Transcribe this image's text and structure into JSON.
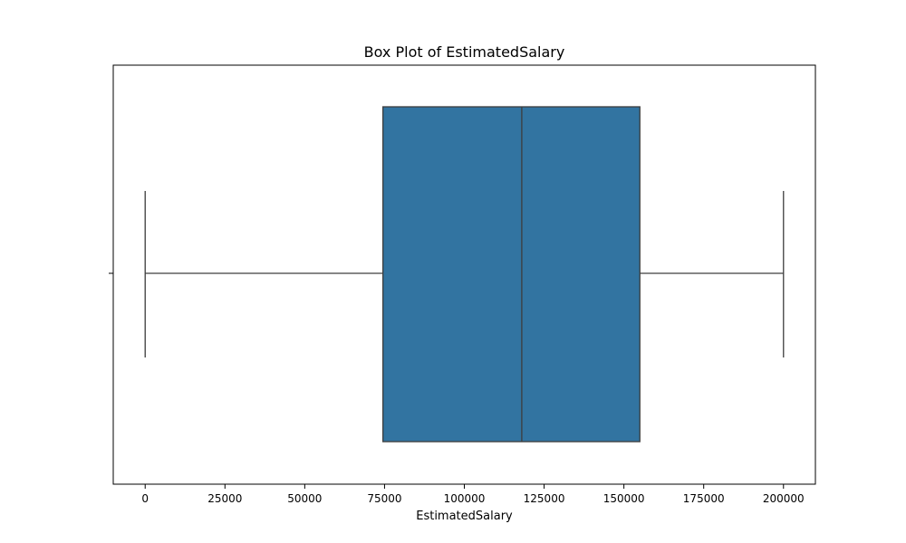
{
  "chart_data": {
    "type": "box",
    "title": "Box Plot of EstimatedSalary",
    "xlabel": "EstimatedSalary",
    "ylabel": "",
    "orientation": "horizontal",
    "xlim": [
      -10000,
      210000
    ],
    "xticks": [
      0,
      25000,
      50000,
      75000,
      100000,
      125000,
      150000,
      175000,
      200000
    ],
    "xtick_labels": [
      "0",
      "25000",
      "50000",
      "75000",
      "100000",
      "125000",
      "150000",
      "175000",
      "200000"
    ],
    "box": {
      "min": 0,
      "q1": 74500,
      "median": 118000,
      "q3": 155000,
      "max": 200000
    },
    "grid": false,
    "legend": "none",
    "colors": {
      "box_fill": "#3274a1",
      "line": "#3d3d3d",
      "axis": "#000000"
    }
  }
}
